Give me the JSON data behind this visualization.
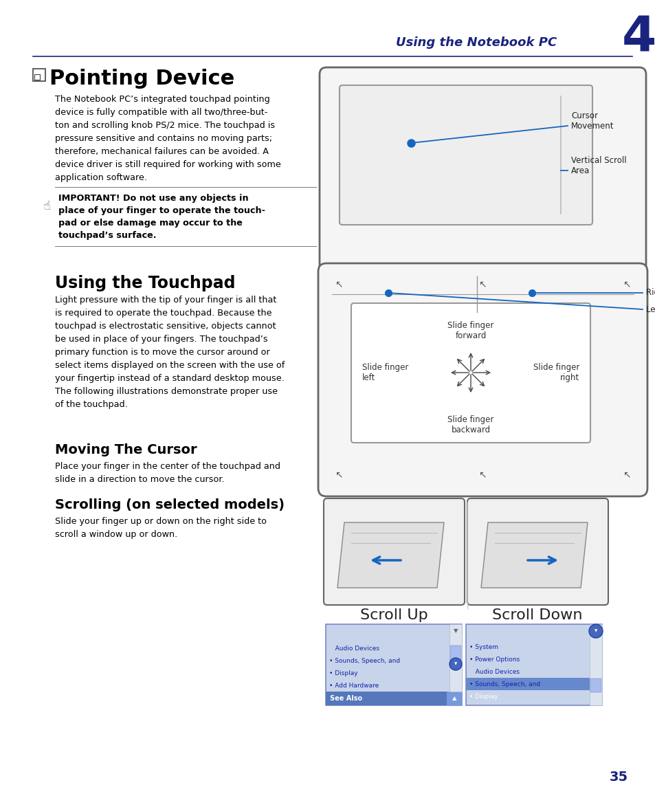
{
  "page_bg": "#ffffff",
  "header_color": "#1a237e",
  "header_text": "Using the Notebook PC",
  "header_number": "4",
  "title_pointing": "Pointing Device",
  "body_color": "#000000",
  "accent_blue": "#1565c0",
  "section2_title": "Using the Touchpad",
  "section3_title": "Moving The Cursor",
  "section4_title": "Scrolling (on selected models)",
  "page_number": "35",
  "body1_lines": [
    "The Notebook PC’s integrated touchpad pointing",
    "device is fully compatible with all two/three-but-",
    "ton and scrolling knob PS/2 mice. The touchpad is",
    "pressure sensitive and contains no moving parts;",
    "therefore, mechanical failures can be avoided. A",
    "device driver is still required for working with some",
    "application software."
  ],
  "important_lines": [
    "IMPORTANT! Do not use any objects in",
    "place of your finger to operate the touch-",
    "pad or else damage may occur to the",
    "touchpad’s surface."
  ],
  "body2_lines": [
    "Light pressure with the tip of your finger is all that",
    "is required to operate the touchpad. Because the",
    "touchpad is electrostatic sensitive, objects cannot",
    "be used in place of your fingers. The touchpad’s",
    "primary function is to move the cursor around or",
    "select items displayed on the screen with the use of",
    "your fingertip instead of a standard desktop mouse.",
    "The following illustrations demonstrate proper use",
    "of the touchpad."
  ],
  "body3_lines": [
    "Place your finger in the center of the touchpad and",
    "slide in a direction to move the cursor."
  ],
  "body4_lines": [
    "Slide your finger up or down on the right side to",
    "scroll a window up or down."
  ]
}
